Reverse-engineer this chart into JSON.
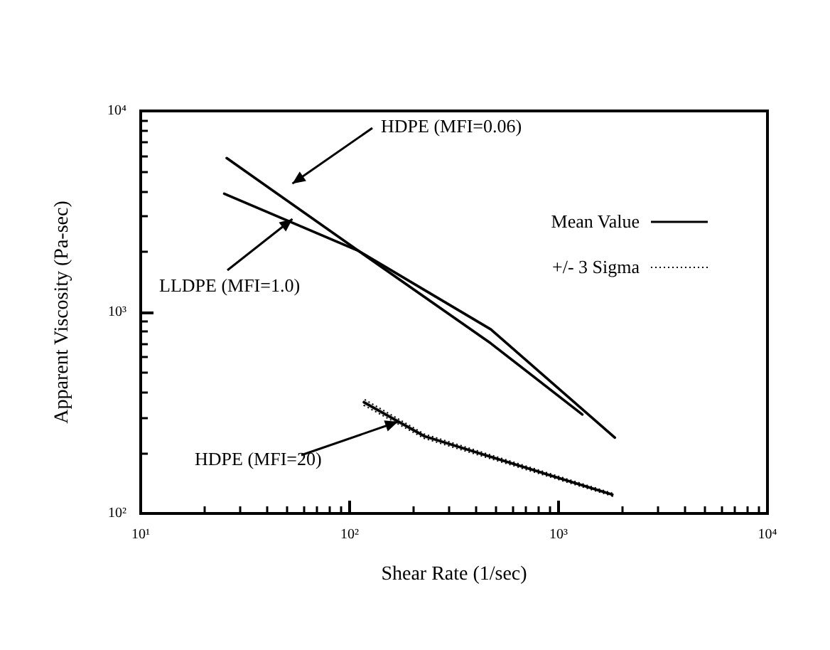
{
  "chart_data": {
    "type": "line",
    "xlabel": "Shear Rate (1/sec)",
    "ylabel": "Apparent Viscosity (Pa-sec)",
    "log": "xy",
    "xlim": [
      10,
      10000
    ],
    "ylim": [
      100,
      10000
    ],
    "xticks": [
      {
        "value": 10,
        "label": "10¹"
      },
      {
        "value": 100,
        "label": "10²"
      },
      {
        "value": 1000,
        "label": "10³"
      },
      {
        "value": 10000,
        "label": "10⁴"
      }
    ],
    "yticks": [
      {
        "value": 100,
        "label": "10²"
      },
      {
        "value": 1000,
        "label": "10³"
      },
      {
        "value": 10000,
        "label": "10⁴"
      }
    ],
    "grid": false,
    "legend": false,
    "marker": "none",
    "line_style": "solid",
    "annotations": [
      "Mean Value",
      "+/- 3 Sigma"
    ],
    "series": [
      {
        "name": "HDPE (MFI=0.06)",
        "color": "#000000",
        "x": [
          25.8,
          110,
          474,
          1300
        ],
        "values": [
          5830,
          2020,
          700,
          310
        ]
      },
      {
        "name": "LLDPE (MFI=1.0)",
        "color": "#000000",
        "x": [
          25.1,
          110,
          474,
          1860
        ],
        "values": [
          3880,
          2020,
          822,
          238
        ]
      },
      {
        "name": "HDPE (MFI=20)",
        "color": "#000000",
        "x": [
          117,
          228,
          1810
        ],
        "values": [
          357,
          242,
          124
        ],
        "lower": [
          345,
          236,
          122
        ],
        "upper": [
          370,
          248,
          126
        ]
      }
    ]
  }
}
